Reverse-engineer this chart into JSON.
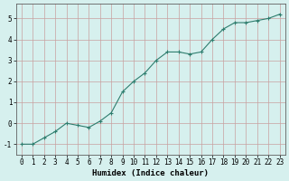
{
  "x": [
    0,
    1,
    2,
    3,
    4,
    5,
    6,
    7,
    8,
    9,
    10,
    11,
    12,
    13,
    14,
    15,
    16,
    17,
    18,
    19,
    20,
    21,
    22,
    23
  ],
  "y": [
    -1.0,
    -1.0,
    -0.7,
    -0.4,
    0.0,
    -0.1,
    -0.2,
    0.1,
    0.5,
    1.5,
    2.0,
    2.4,
    3.0,
    3.4,
    3.4,
    3.3,
    3.4,
    4.0,
    4.5,
    4.8,
    4.8,
    4.9,
    5.0,
    5.2
  ],
  "line_color": "#2e7d6e",
  "marker": "+",
  "marker_size": 3,
  "line_width": 0.8,
  "xlabel": "Humidex (Indice chaleur)",
  "xlim": [
    -0.5,
    23.5
  ],
  "ylim": [
    -1.5,
    5.7
  ],
  "yticks": [
    -1,
    0,
    1,
    2,
    3,
    4,
    5
  ],
  "xticks": [
    0,
    1,
    2,
    3,
    4,
    5,
    6,
    7,
    8,
    9,
    10,
    11,
    12,
    13,
    14,
    15,
    16,
    17,
    18,
    19,
    20,
    21,
    22,
    23
  ],
  "bg_color": "#d6f0ee",
  "grid_color": "#c8a0a0",
  "xlabel_fontsize": 6.5,
  "tick_fontsize": 5.5,
  "spine_color": "#606060"
}
